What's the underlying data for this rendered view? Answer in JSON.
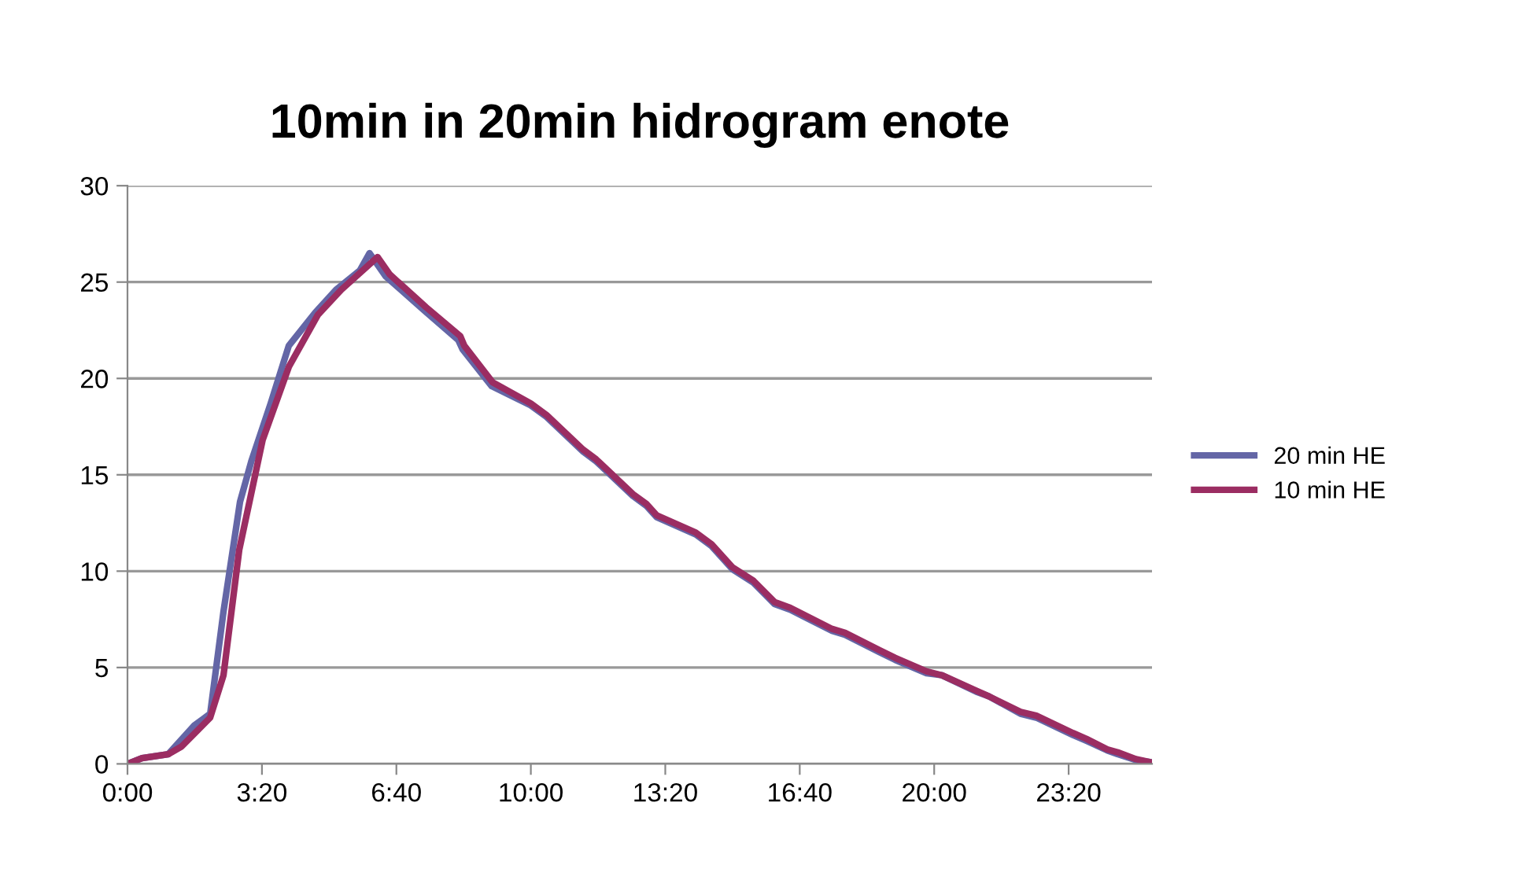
{
  "chart_data": {
    "type": "line",
    "title": "10min in 20min hidrogram enote",
    "xlim": [
      0,
      25.4
    ],
    "xticks": [
      {
        "value": 0,
        "label": "0:00"
      },
      {
        "value": 3.3333,
        "label": "3:20"
      },
      {
        "value": 6.6667,
        "label": "6:40"
      },
      {
        "value": 10,
        "label": "10:00"
      },
      {
        "value": 13.3333,
        "label": "13:20"
      },
      {
        "value": 16.6667,
        "label": "16:40"
      },
      {
        "value": 20,
        "label": "20:00"
      },
      {
        "value": 23.3333,
        "label": "23:20"
      }
    ],
    "ylim": [
      0,
      30
    ],
    "yticks": [
      0,
      5,
      10,
      15,
      20,
      25,
      30
    ],
    "grid": "y",
    "legend": "right",
    "marker": "none",
    "line_style": "solid",
    "series": [
      {
        "name": "20 min HE",
        "color": "#6466a6",
        "x": [
          0,
          0.36,
          1.01,
          1.66,
          2.05,
          2.38,
          2.79,
          3.07,
          3.55,
          4.0,
          4.65,
          5.17,
          5.76,
          6.0,
          6.4,
          7.37,
          8.2,
          8.31,
          9.03,
          10,
          10.39,
          11.3,
          11.62,
          12.53,
          12.86,
          13.12,
          14.09,
          14.48,
          15.0,
          15.52,
          16.04,
          16.43,
          17.47,
          17.79,
          18.64,
          19.03,
          19.81,
          20.19,
          21.04,
          21.36,
          22.14,
          22.53,
          23.44,
          23.77,
          24.29,
          24.55,
          25.0,
          25.32
        ],
        "values": [
          0,
          0.3,
          0.5,
          2.0,
          2.6,
          7.9,
          13.6,
          15.7,
          18.7,
          21.7,
          23.4,
          24.6,
          25.6,
          26.5,
          25.3,
          23.5,
          22.0,
          21.5,
          19.6,
          18.6,
          18.0,
          16.2,
          15.7,
          13.9,
          13.4,
          12.8,
          11.9,
          11.3,
          10.1,
          9.4,
          8.3,
          8.0,
          6.9,
          6.7,
          5.8,
          5.4,
          4.7,
          4.6,
          3.75,
          3.5,
          2.6,
          2.4,
          1.5,
          1.2,
          0.7,
          0.5,
          0.2,
          0.1
        ]
      },
      {
        "name": "10 min HE",
        "color": "#9b2d62",
        "x": [
          0,
          0.36,
          1.01,
          1.34,
          2.05,
          2.38,
          2.77,
          3.35,
          4.0,
          4.72,
          5.3,
          6.2,
          6.5,
          7.4,
          8.25,
          8.35,
          9.05,
          10,
          10.39,
          11.3,
          11.62,
          12.53,
          12.86,
          13.12,
          14.09,
          14.48,
          15.0,
          15.52,
          16.04,
          16.43,
          17.47,
          17.79,
          18.64,
          19.03,
          19.81,
          20.19,
          21.04,
          21.36,
          22.14,
          22.53,
          23.44,
          23.77,
          24.29,
          24.55,
          25.0,
          25.32
        ],
        "values": [
          0,
          0.3,
          0.5,
          0.9,
          2.4,
          4.6,
          11.1,
          16.8,
          20.6,
          23.3,
          24.6,
          26.3,
          25.4,
          23.7,
          22.2,
          21.7,
          19.8,
          18.7,
          18.1,
          16.3,
          15.8,
          14.0,
          13.5,
          12.9,
          12.0,
          11.4,
          10.2,
          9.5,
          8.4,
          8.1,
          7.0,
          6.8,
          5.9,
          5.5,
          4.8,
          4.6,
          3.8,
          3.5,
          2.7,
          2.5,
          1.6,
          1.3,
          0.75,
          0.6,
          0.25,
          0.1
        ]
      }
    ]
  }
}
